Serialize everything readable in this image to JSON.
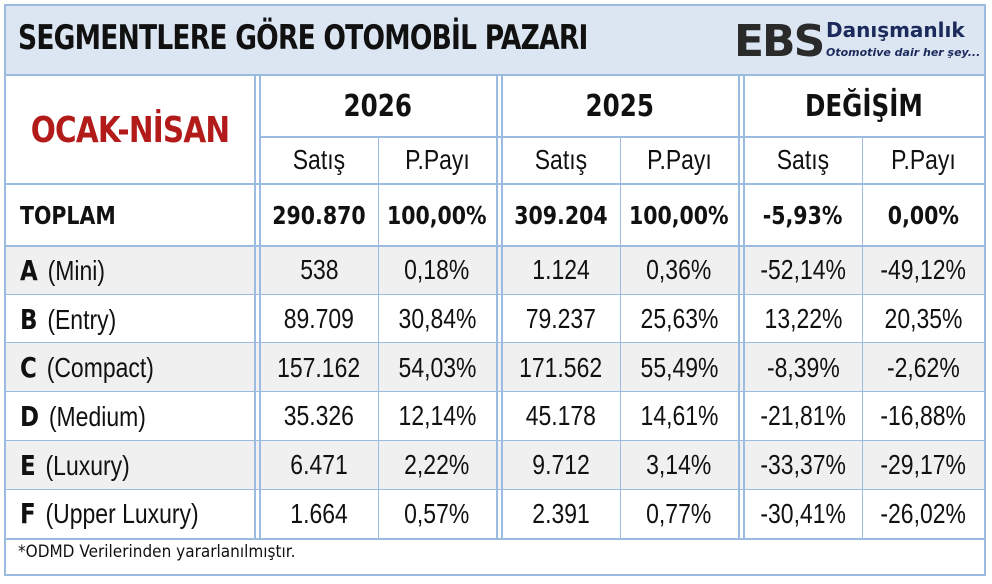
{
  "title": "SEGMENTLERE GÖRE OTOMOBİL PAZARI",
  "logo": {
    "mark": "EBS",
    "name": "Danışmanlık",
    "tagline": "Otomotive dair her şey..."
  },
  "table": {
    "period_label": "OCAK-NİSAN",
    "year_groups": [
      "2026",
      "2025",
      "DEĞİŞİM"
    ],
    "sub_headers": [
      "Satış",
      "P.Payı",
      "Satış",
      "P.Payı",
      "Satış",
      "P.Payı"
    ],
    "total": {
      "label": "TOPLAM",
      "values": [
        "290.870",
        "100,00%",
        "309.204",
        "100,00%",
        "-5,93%",
        "0,00%"
      ]
    },
    "rows": [
      {
        "segment": "A",
        "name": "(Mini)",
        "values": [
          "538",
          "0,18%",
          "1.124",
          "0,36%",
          "-52,14%",
          "-49,12%"
        ]
      },
      {
        "segment": "B",
        "name": "(Entry)",
        "values": [
          "89.709",
          "30,84%",
          "79.237",
          "25,63%",
          "13,22%",
          "20,35%"
        ]
      },
      {
        "segment": "C",
        "name": "(Compact)",
        "values": [
          "157.162",
          "54,03%",
          "171.562",
          "55,49%",
          "-8,39%",
          "-2,62%"
        ]
      },
      {
        "segment": "D",
        "name": "(Medium)",
        "values": [
          "35.326",
          "12,14%",
          "45.178",
          "14,61%",
          "-21,81%",
          "-16,88%"
        ]
      },
      {
        "segment": "E",
        "name": "(Luxury)",
        "values": [
          "6.471",
          "2,22%",
          "9.712",
          "3,14%",
          "-33,37%",
          "-29,17%"
        ]
      },
      {
        "segment": "F",
        "name": "(Upper Luxury)",
        "values": [
          "1.664",
          "0,57%",
          "2.391",
          "0,77%",
          "-30,41%",
          "-26,02%"
        ]
      }
    ]
  },
  "footnote": "*ODMD Verilerinden yararlanılmıştır."
}
